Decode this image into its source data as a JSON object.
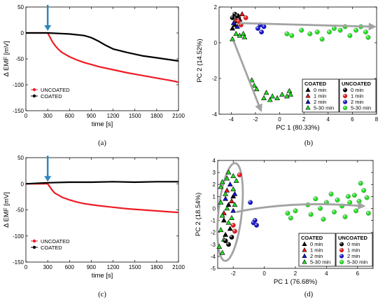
{
  "chart_data": [
    {
      "id": "a",
      "type": "line",
      "panel_label": "(a)",
      "xlabel": "time [s]",
      "ylabel": "Δ EMF [mV]",
      "xlim": [
        0,
        2100
      ],
      "ylim": [
        -150,
        50
      ],
      "xticks": [
        0,
        300,
        600,
        900,
        1200,
        1500,
        1800,
        2100
      ],
      "yticks": [
        50,
        0,
        -50,
        -100,
        -150
      ],
      "arrow_at_x": 300,
      "legend_position": "bottom-left",
      "series": [
        {
          "name": "UNCOATED",
          "color": "#ee1c24",
          "x": [
            0,
            300,
            330,
            360,
            400,
            450,
            500,
            600,
            700,
            800,
            900,
            1000,
            1200,
            1400,
            1600,
            1800,
            2000,
            2100
          ],
          "y": [
            0,
            0,
            -8,
            -16,
            -24,
            -32,
            -38,
            -46,
            -52,
            -57,
            -61,
            -65,
            -71,
            -77,
            -82,
            -87,
            -92,
            -95
          ]
        },
        {
          "name": "COATED",
          "color": "#000000",
          "x": [
            0,
            300,
            600,
            800,
            900,
            1000,
            1100,
            1200,
            1400,
            1600,
            1800,
            2000,
            2100
          ],
          "y": [
            0,
            0,
            -2,
            -5,
            -9,
            -16,
            -24,
            -31,
            -38,
            -44,
            -48,
            -52,
            -54
          ]
        }
      ]
    },
    {
      "id": "b",
      "type": "scatter",
      "panel_label": "(b)",
      "xlabel": "PC 1 (80.33%)",
      "ylabel": "PC 2 (14.52%)",
      "xlim": [
        -5,
        8
      ],
      "ylim": [
        -4,
        2
      ],
      "xticks": [
        -4,
        -2,
        0,
        2,
        4,
        6,
        8
      ],
      "yticks": [
        2,
        0,
        -2,
        -4
      ],
      "legend": {
        "coated_title": "COATED",
        "uncoated_title": "UNCOATED",
        "entries": [
          {
            "label": "0 min",
            "color": "#000000"
          },
          {
            "label": "1 min",
            "color": "#e8141b"
          },
          {
            "label": "2 min",
            "color": "#1414d0"
          },
          {
            "label": "5-30 min",
            "color": "#22dd22"
          }
        ]
      },
      "arrows": [
        {
          "from": [
            -3.3,
            1.1
          ],
          "to": [
            7.7,
            0.9
          ]
        },
        {
          "from": [
            -3.8,
            0.1
          ],
          "to": [
            -1.6,
            -3.7
          ]
        }
      ],
      "groups": [
        {
          "marker": "triangle",
          "color": "#000000",
          "points": [
            [
              -3.9,
              0.8
            ],
            [
              -3.7,
              1.0
            ],
            [
              -3.5,
              1.2
            ],
            [
              -3.3,
              1.3
            ]
          ]
        },
        {
          "marker": "triangle",
          "color": "#e8141b",
          "points": [
            [
              -3.6,
              1.3
            ],
            [
              -3.4,
              1.5
            ],
            [
              -3.1,
              1.6
            ]
          ]
        },
        {
          "marker": "triangle",
          "color": "#1414d0",
          "points": [
            [
              -3.8,
              1.1
            ],
            [
              -3.5,
              0.9
            ]
          ]
        },
        {
          "marker": "triangle",
          "color": "#22dd22",
          "points": [
            [
              -3.9,
              0.2
            ],
            [
              -3.6,
              0.5
            ],
            [
              -3.3,
              0.4
            ],
            [
              -3.0,
              0.5
            ],
            [
              -2.9,
              0.3
            ],
            [
              -2.3,
              -2.1
            ],
            [
              -2.1,
              -2.4
            ],
            [
              -1.9,
              -2.6
            ],
            [
              -1.3,
              -3.1
            ],
            [
              -1.1,
              -2.8
            ],
            [
              -0.8,
              -3.2
            ],
            [
              -0.6,
              -3.0
            ],
            [
              -0.2,
              -3.1
            ],
            [
              0.2,
              -2.9
            ],
            [
              0.6,
              -3.0
            ],
            [
              0.8,
              -2.7
            ],
            [
              0.9,
              -2.9
            ]
          ]
        },
        {
          "marker": "circle",
          "color": "#000000",
          "points": [
            [
              -3.9,
              1.4
            ],
            [
              -3.7,
              1.6
            ],
            [
              -3.5,
              1.5
            ]
          ]
        },
        {
          "marker": "circle",
          "color": "#e8141b",
          "points": [
            [
              -3.4,
              1.2
            ],
            [
              -3.2,
              1.0
            ],
            [
              -2.8,
              1.4
            ]
          ]
        },
        {
          "marker": "circle",
          "color": "#1414d0",
          "points": [
            [
              -1.8,
              0.8
            ],
            [
              -1.5,
              0.6
            ],
            [
              -1.3,
              0.9
            ],
            [
              -1.6,
              1.0
            ]
          ]
        },
        {
          "marker": "circle",
          "color": "#22dd22",
          "points": [
            [
              0.6,
              0.5
            ],
            [
              1.0,
              0.4
            ],
            [
              1.8,
              0.7
            ],
            [
              2.5,
              0.5
            ],
            [
              3.1,
              0.6
            ],
            [
              3.5,
              0.2
            ],
            [
              4.1,
              0.6
            ],
            [
              4.5,
              0.8
            ],
            [
              5.0,
              0.7
            ],
            [
              5.4,
              0.9
            ],
            [
              5.8,
              0.4
            ],
            [
              6.3,
              0.7
            ],
            [
              6.7,
              0.9
            ],
            [
              7.1,
              0.6
            ],
            [
              7.3,
              0.3
            ]
          ]
        }
      ]
    },
    {
      "id": "c",
      "type": "line",
      "panel_label": "(c)",
      "xlabel": "time [s]",
      "ylabel": "Δ EMF [mV]",
      "xlim": [
        0,
        2100
      ],
      "ylim": [
        -150,
        50
      ],
      "xticks": [
        0,
        300,
        600,
        900,
        1200,
        1500,
        1800,
        2100
      ],
      "yticks": [
        50,
        0,
        -50,
        -100,
        -150
      ],
      "arrow_at_x": 300,
      "legend_position": "bottom-left",
      "series": [
        {
          "name": "UNCOATED",
          "color": "#ee1c24",
          "x": [
            0,
            300,
            330,
            360,
            400,
            450,
            500,
            600,
            700,
            800,
            900,
            1000,
            1200,
            1400,
            1600,
            1800,
            2000,
            2100
          ],
          "y": [
            0,
            0,
            -6,
            -12,
            -18,
            -22,
            -26,
            -31,
            -35,
            -38,
            -40,
            -42,
            -45,
            -48,
            -50,
            -52,
            -54,
            -55
          ]
        },
        {
          "name": "COATED",
          "color": "#000000",
          "x": [
            0,
            300,
            600,
            900,
            1200,
            1500,
            1800,
            2100
          ],
          "y": [
            0,
            2,
            3,
            3,
            4,
            3,
            4,
            4
          ]
        }
      ]
    },
    {
      "id": "d",
      "type": "scatter",
      "panel_label": "(d)",
      "xlabel": "PC 1 (76.68%)",
      "ylabel": "PC 2 (18.54%)",
      "xlim": [
        -3,
        7
      ],
      "ylim": [
        -5,
        4
      ],
      "xticks": [
        -2,
        0,
        2,
        4,
        6
      ],
      "yticks": [
        4,
        3,
        2,
        1,
        0,
        -1,
        -2,
        -3,
        -4,
        -5
      ],
      "legend": {
        "coated_title": "COATED",
        "uncoated_title": "UNCOATED",
        "entries": [
          {
            "label": "0 min",
            "color": "#000000"
          },
          {
            "label": "1 min",
            "color": "#e8141b"
          },
          {
            "label": "2 min",
            "color": "#1414d0"
          },
          {
            "label": "5-30 min",
            "color": "#22dd22"
          }
        ]
      },
      "arrows": [
        {
          "from": [
            -1.8,
            -0.3
          ],
          "to": [
            6.3,
            0.2
          ]
        }
      ],
      "ellipse": {
        "cx": -2.2,
        "cy": -0.3,
        "rx": 0.75,
        "ry": 4.1
      },
      "groups": [
        {
          "marker": "triangle",
          "color": "#000000",
          "points": [
            [
              -2.6,
              -1.0
            ],
            [
              -2.3,
              0.3
            ],
            [
              -2.0,
              1.0
            ],
            [
              -2.5,
              -2.2
            ],
            [
              -2.2,
              -1.7
            ]
          ]
        },
        {
          "marker": "triangle",
          "color": "#e8141b",
          "points": [
            [
              -2.4,
              1.5
            ],
            [
              -2.1,
              0.6
            ],
            [
              -2.6,
              -0.4
            ]
          ]
        },
        {
          "marker": "triangle",
          "color": "#1414d0",
          "points": [
            [
              -2.2,
              2.0
            ],
            [
              -1.9,
              1.2
            ],
            [
              -2.5,
              0.8
            ],
            [
              -2.0,
              -0.2
            ]
          ]
        },
        {
          "marker": "triangle",
          "color": "#22dd22",
          "points": [
            [
              -2.3,
              3.0
            ],
            [
              -2.0,
              2.7
            ],
            [
              -2.7,
              2.2
            ],
            [
              -2.4,
              2.5
            ],
            [
              -2.8,
              1.8
            ],
            [
              -2.5,
              1.2
            ],
            [
              -2.8,
              0.5
            ],
            [
              -2.4,
              0.0
            ],
            [
              -2.7,
              -0.6
            ],
            [
              -2.3,
              -1.2
            ],
            [
              -2.8,
              -1.8
            ],
            [
              -2.6,
              -2.6
            ],
            [
              -2.9,
              -3.2
            ],
            [
              -2.7,
              -3.7
            ],
            [
              -2.0,
              1.6
            ],
            [
              -1.9,
              0.3
            ],
            [
              -2.1,
              -0.8
            ],
            [
              -1.8,
              2.3
            ]
          ]
        },
        {
          "marker": "circle",
          "color": "#000000",
          "points": [
            [
              -2.5,
              -2.7
            ],
            [
              -2.3,
              -3.0
            ],
            [
              -2.1,
              -2.4
            ]
          ]
        },
        {
          "marker": "circle",
          "color": "#e8141b",
          "points": [
            [
              -1.6,
              2.8
            ],
            [
              -1.9,
              -1.9
            ],
            [
              -2.0,
              -1.4
            ]
          ]
        },
        {
          "marker": "circle",
          "color": "#1414d0",
          "points": [
            [
              -0.9,
              0.5
            ],
            [
              -0.7,
              -1.2
            ],
            [
              -0.5,
              -1.4
            ],
            [
              -0.6,
              -1.0
            ]
          ]
        },
        {
          "marker": "circle",
          "color": "#22dd22",
          "points": [
            [
              1.5,
              -0.4
            ],
            [
              1.7,
              -0.8
            ],
            [
              2.0,
              -0.2
            ],
            [
              2.8,
              0.3
            ],
            [
              3.0,
              -0.5
            ],
            [
              3.3,
              0.8
            ],
            [
              3.6,
              0.0
            ],
            [
              3.8,
              -0.9
            ],
            [
              4.0,
              0.5
            ],
            [
              4.3,
              1.2
            ],
            [
              4.5,
              -0.3
            ],
            [
              4.7,
              0.7
            ],
            [
              5.0,
              0.2
            ],
            [
              5.2,
              -0.7
            ],
            [
              5.4,
              1.0
            ],
            [
              5.5,
              0.5
            ],
            [
              5.8,
              1.1
            ],
            [
              5.9,
              -0.2
            ],
            [
              6.1,
              0.6
            ],
            [
              6.2,
              2.1
            ],
            [
              6.4,
              1.5
            ],
            [
              6.6,
              0.9
            ],
            [
              6.7,
              -0.4
            ]
          ]
        }
      ]
    }
  ]
}
